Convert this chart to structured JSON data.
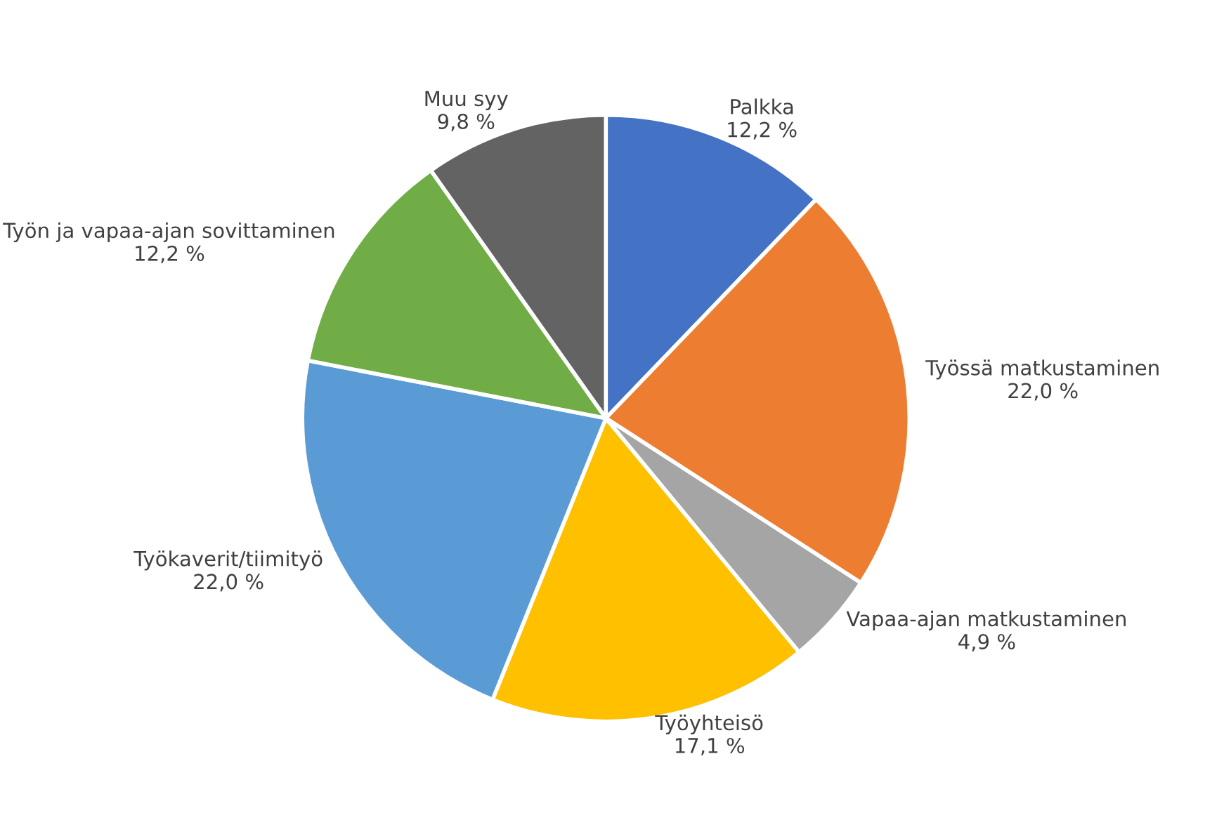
{
  "chart_data": {
    "type": "pie",
    "categories": [
      "Palkka",
      "Työssä matkustaminen",
      "Vapaa-ajan matkustaminen",
      "Työyhteisö",
      "Työkaverit/tiimityö",
      "Työn ja vapaa-ajan sovittaminen",
      "Muu syy"
    ],
    "values": [
      12.2,
      22.0,
      4.9,
      17.1,
      22.0,
      12.2,
      9.8
    ],
    "value_labels": [
      "12,2 %",
      "22,0 %",
      "4,9 %",
      "17,1 %",
      "22,0 %",
      "12,2 %",
      "9,8 %"
    ],
    "colors": [
      "#4472c4",
      "#ed7d31",
      "#a5a5a5",
      "#ffc000",
      "#5b9bd5",
      "#70ad47",
      "#636363"
    ],
    "legend": false
  }
}
